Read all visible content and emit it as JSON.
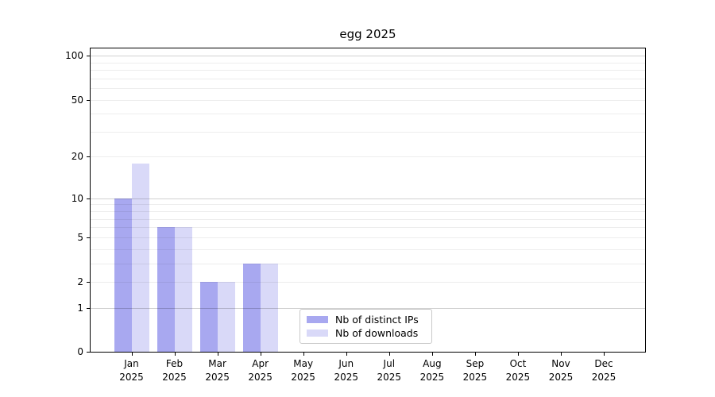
{
  "chart_data": {
    "type": "bar",
    "title": "egg 2025",
    "x_year": "2025",
    "categories": [
      "Jan",
      "Feb",
      "Mar",
      "Apr",
      "May",
      "Jun",
      "Jul",
      "Aug",
      "Sep",
      "Oct",
      "Nov",
      "Dec"
    ],
    "series": [
      {
        "name": "Nb of distinct IPs",
        "color": "#a8a8f0",
        "values": [
          10,
          6,
          2,
          3,
          0,
          0,
          0,
          0,
          0,
          0,
          0,
          0
        ]
      },
      {
        "name": "Nb of downloads",
        "color": "#d9d9f8",
        "values": [
          18,
          6,
          2,
          3,
          0,
          0,
          0,
          0,
          0,
          0,
          0,
          0
        ]
      }
    ],
    "yscale": "log1p",
    "ylim": [
      0,
      112
    ],
    "grid": true,
    "y_tick_values": [
      100,
      50,
      20,
      10,
      5,
      2,
      1,
      0
    ],
    "y_minor_gridlines": [
      2,
      3,
      4,
      5,
      6,
      7,
      8,
      9,
      20,
      30,
      40,
      50,
      60,
      70,
      80,
      90
    ],
    "y_major_gridlines": [
      1,
      10,
      100
    ],
    "legend": {
      "position": "lower center",
      "entries": [
        "Nb of distinct IPs",
        "Nb of downloads"
      ]
    }
  }
}
